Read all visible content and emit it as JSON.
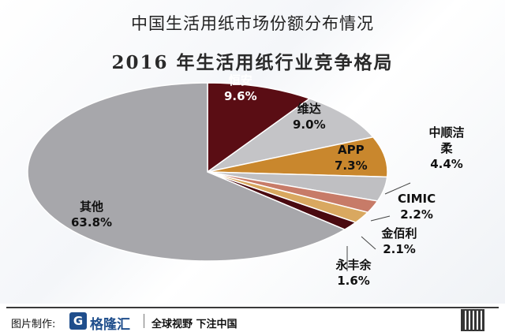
{
  "page_title": "中国生活用纸市场份额分布情况",
  "footer": {
    "credit_label": "图片制作:",
    "logo_mark": "G",
    "logo_text": "格隆汇",
    "slogan": "全球视野 下注中国"
  },
  "chart_data": {
    "type": "pie",
    "title": "2016 年生活用纸行业竞争格局",
    "slices": [
      {
        "name": "恒安",
        "value": 9.6,
        "label": "9.6%",
        "color": "#5a0d14"
      },
      {
        "name": "维达",
        "value": 9.0,
        "label": "9.0%",
        "color": "#c4c4c7"
      },
      {
        "name": "APP",
        "value": 7.3,
        "label": "7.3%",
        "color": "#c9872d"
      },
      {
        "name": "中顺洁柔",
        "value": 4.4,
        "label": "4.4%",
        "color": "#bfbfc2"
      },
      {
        "name": "CIMIC",
        "value": 2.2,
        "label": "2.2%",
        "color": "#c77b68"
      },
      {
        "name": "金佰利",
        "value": 2.1,
        "label": "2.1%",
        "color": "#d9a860"
      },
      {
        "name": "永丰余",
        "value": 1.6,
        "label": "1.6%",
        "color": "#4a0a10"
      },
      {
        "name": "其他",
        "value": 63.8,
        "label": "63.8%",
        "color": "#a7a7ab"
      }
    ]
  }
}
